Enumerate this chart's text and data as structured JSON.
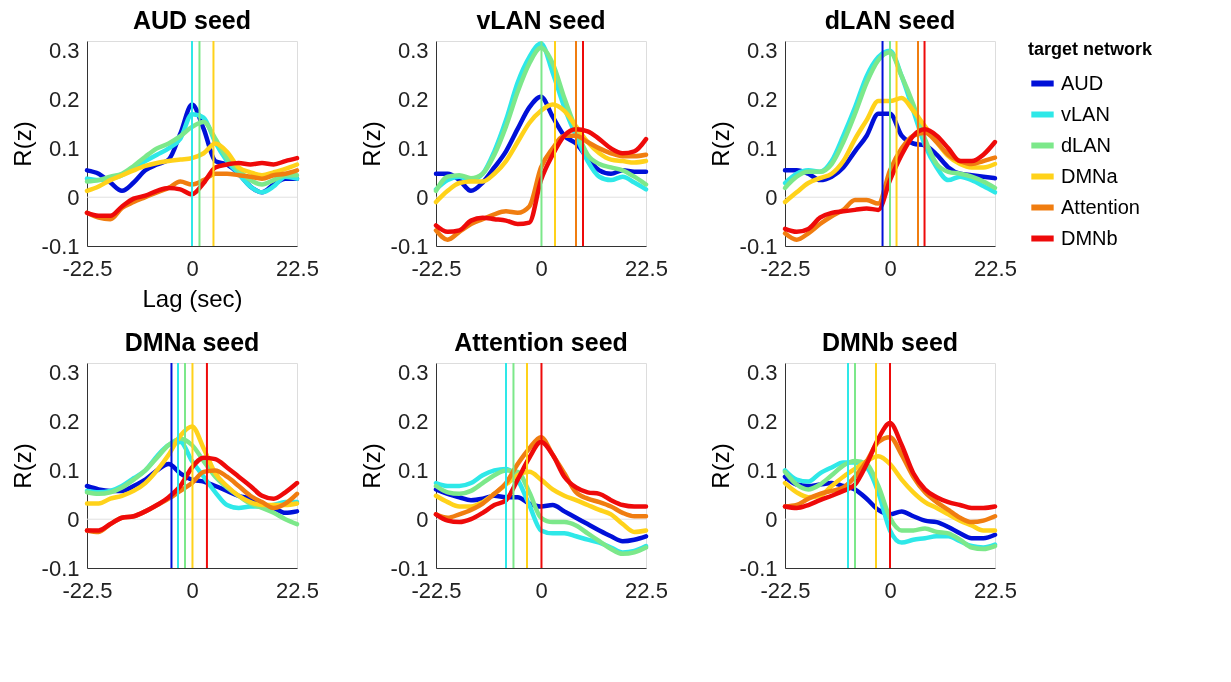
{
  "chart_data": [
    {
      "type": "line",
      "title": "AUD seed",
      "xlabel": "Lag (sec)",
      "ylabel": "R(z)",
      "xlim": [
        -22.5,
        22.5
      ],
      "ylim": [
        -0.1,
        0.32
      ],
      "xticks": [
        -22.5,
        0,
        22.5
      ],
      "yticks": [
        -0.1,
        0,
        0.1,
        0.2,
        0.3
      ],
      "grid": false,
      "x": [
        -22.5,
        -20,
        -17.5,
        -15,
        -12.5,
        -10,
        -7.5,
        -5,
        -2.5,
        0,
        2.5,
        5,
        7.5,
        10,
        12.5,
        15,
        17.5,
        20,
        22.5
      ],
      "series": [
        {
          "color": "#0010d8",
          "values": [
            0.055,
            0.048,
            0.03,
            0.013,
            0.03,
            0.055,
            0.067,
            0.077,
            0.13,
            0.19,
            0.14,
            0.074,
            0.067,
            0.048,
            0.022,
            0.01,
            0.026,
            0.038,
            0.038
          ]
        },
        {
          "color": "#2ee8e8",
          "values": [
            0.038,
            0.035,
            0.038,
            0.045,
            0.061,
            0.074,
            0.087,
            0.1,
            0.12,
            0.17,
            0.163,
            0.112,
            0.074,
            0.048,
            0.022,
            0.01,
            0.022,
            0.042,
            0.038
          ]
        },
        {
          "color": "#7ce88a",
          "values": [
            0.032,
            0.035,
            0.042,
            0.048,
            0.064,
            0.083,
            0.1,
            0.11,
            0.125,
            0.144,
            0.154,
            0.12,
            0.08,
            0.055,
            0.035,
            0.026,
            0.035,
            0.045,
            0.045
          ]
        },
        {
          "color": "#ffd21a",
          "values": [
            0.013,
            0.022,
            0.035,
            0.045,
            0.055,
            0.064,
            0.07,
            0.074,
            0.077,
            0.08,
            0.09,
            0.11,
            0.093,
            0.061,
            0.051,
            0.045,
            0.051,
            0.058,
            0.067
          ]
        },
        {
          "color": "#f07d10",
          "values": [
            -0.032,
            -0.042,
            -0.045,
            -0.022,
            -0.01,
            0,
            0.01,
            0.019,
            0.032,
            0.026,
            0.035,
            0.048,
            0.048,
            0.045,
            0.042,
            0.038,
            0.045,
            0.048,
            0.055
          ]
        },
        {
          "color": "#ee0a0a",
          "values": [
            -0.032,
            -0.038,
            -0.038,
            -0.019,
            -0.003,
            0.003,
            0.013,
            0.019,
            0.016,
            0.006,
            0.029,
            0.061,
            0.067,
            0.07,
            0.067,
            0.07,
            0.067,
            0.074,
            0.08
          ]
        }
      ],
      "ref_lines": [
        {
          "axis": "y",
          "value": 0,
          "color": "#e0e0e0"
        },
        {
          "axis": "x",
          "value": 0,
          "color": "#2ee8e8"
        },
        {
          "axis": "x",
          "value": 1.6,
          "color": "#7ce88a"
        },
        {
          "axis": "x",
          "value": 4.6,
          "color": "#ffd21a"
        }
      ]
    },
    {
      "type": "line",
      "title": "vLAN seed",
      "ylabel": "R(z)",
      "xlim": [
        -22.5,
        22.5
      ],
      "ylim": [
        -0.1,
        0.32
      ],
      "xticks": [
        -22.5,
        0,
        22.5
      ],
      "yticks": [
        -0.1,
        0,
        0.1,
        0.2,
        0.3
      ],
      "grid": false,
      "x": [
        -22.5,
        -20,
        -17.5,
        -15,
        -12.5,
        -10,
        -7.5,
        -5,
        -2.5,
        0,
        2.5,
        5,
        7.5,
        10,
        12.5,
        15,
        17.5,
        20,
        22.5
      ],
      "series": [
        {
          "color": "#0010d8",
          "values": [
            0.048,
            0.048,
            0.035,
            0.013,
            0.03,
            0.061,
            0.094,
            0.14,
            0.184,
            0.206,
            0.165,
            0.126,
            0.11,
            0.08,
            0.055,
            0.048,
            0.055,
            0.052,
            0.052
          ]
        },
        {
          "color": "#2ee8e8",
          "values": [
            0.016,
            0.035,
            0.042,
            0.035,
            0.048,
            0.094,
            0.158,
            0.235,
            0.287,
            0.315,
            0.255,
            0.184,
            0.126,
            0.074,
            0.042,
            0.035,
            0.042,
            0.03,
            0.016
          ]
        },
        {
          "color": "#7ce88a",
          "values": [
            0.013,
            0.042,
            0.045,
            0.039,
            0.048,
            0.087,
            0.145,
            0.216,
            0.274,
            0.306,
            0.274,
            0.203,
            0.139,
            0.087,
            0.068,
            0.061,
            0.055,
            0.042,
            0.026
          ]
        },
        {
          "color": "#ffd21a",
          "values": [
            -0.01,
            0.013,
            0.029,
            0.032,
            0.032,
            0.048,
            0.074,
            0.113,
            0.152,
            0.177,
            0.19,
            0.177,
            0.145,
            0.113,
            0.09,
            0.077,
            0.074,
            0.071,
            0.074
          ]
        },
        {
          "color": "#f07d10",
          "values": [
            -0.068,
            -0.087,
            -0.071,
            -0.055,
            -0.045,
            -0.035,
            -0.029,
            -0.032,
            -0.019,
            0.061,
            0.1,
            0.126,
            0.126,
            0.113,
            0.1,
            0.09,
            0.084,
            0.084,
            0.087
          ]
        },
        {
          "color": "#ee0a0a",
          "values": [
            -0.058,
            -0.071,
            -0.068,
            -0.048,
            -0.042,
            -0.045,
            -0.048,
            -0.055,
            -0.052,
            0.035,
            0.087,
            0.126,
            0.139,
            0.135,
            0.119,
            0.1,
            0.09,
            0.094,
            0.119
          ]
        }
      ],
      "ref_lines": [
        {
          "axis": "y",
          "value": 0,
          "color": "#e0e0e0"
        },
        {
          "axis": "x",
          "value": 0.1,
          "color": "#7ce88a"
        },
        {
          "axis": "x",
          "value": 3.0,
          "color": "#ffd21a"
        },
        {
          "axis": "x",
          "value": 7.5,
          "color": "#f07d10"
        },
        {
          "axis": "x",
          "value": 9.0,
          "color": "#ee0a0a"
        }
      ]
    },
    {
      "type": "line",
      "title": "dLAN seed",
      "ylabel": "R(z)",
      "xlim": [
        -22.5,
        22.5
      ],
      "ylim": [
        -0.1,
        0.32
      ],
      "xticks": [
        -22.5,
        0,
        22.5
      ],
      "yticks": [
        -0.1,
        0,
        0.1,
        0.2,
        0.3
      ],
      "grid": false,
      "legend": "right",
      "legend_title": "target network",
      "x": [
        -22.5,
        -20,
        -17.5,
        -15,
        -12.5,
        -10,
        -7.5,
        -5,
        -2.5,
        0,
        2.5,
        5,
        7.5,
        10,
        12.5,
        15,
        17.5,
        20,
        22.5
      ],
      "series": [
        {
          "name": "AUD",
          "color": "#0010d8",
          "values": [
            0.055,
            0.055,
            0.048,
            0.035,
            0.042,
            0.061,
            0.094,
            0.126,
            0.171,
            0.171,
            0.126,
            0.11,
            0.106,
            0.087,
            0.061,
            0.048,
            0.045,
            0.042,
            0.039
          ]
        },
        {
          "name": "vLAN",
          "color": "#2ee8e8",
          "values": [
            0.029,
            0.048,
            0.055,
            0.052,
            0.074,
            0.126,
            0.184,
            0.248,
            0.287,
            0.3,
            0.248,
            0.177,
            0.106,
            0.061,
            0.035,
            0.042,
            0.035,
            0.023,
            0.01
          ]
        },
        {
          "name": "dLAN",
          "color": "#7ce88a",
          "values": [
            0.019,
            0.042,
            0.052,
            0.052,
            0.068,
            0.113,
            0.171,
            0.235,
            0.281,
            0.297,
            0.248,
            0.19,
            0.119,
            0.068,
            0.052,
            0.048,
            0.042,
            0.032,
            0.019
          ]
        },
        {
          "name": "DMNa",
          "color": "#ffd21a",
          "values": [
            -0.01,
            0.01,
            0.029,
            0.039,
            0.048,
            0.074,
            0.119,
            0.158,
            0.197,
            0.197,
            0.203,
            0.177,
            0.145,
            0.113,
            0.084,
            0.068,
            0.061,
            0.061,
            0.068
          ]
        },
        {
          "name": "Attention",
          "color": "#f07d10",
          "values": [
            -0.074,
            -0.087,
            -0.074,
            -0.055,
            -0.039,
            -0.026,
            -0.006,
            -0.006,
            -0.013,
            0.055,
            0.1,
            0.126,
            0.132,
            0.113,
            0.087,
            0.074,
            0.068,
            0.074,
            0.081
          ]
        },
        {
          "name": "DMNb",
          "color": "#ee0a0a",
          "values": [
            -0.065,
            -0.071,
            -0.065,
            -0.042,
            -0.032,
            -0.029,
            -0.026,
            -0.023,
            -0.026,
            0.035,
            0.087,
            0.126,
            0.139,
            0.126,
            0.1,
            0.074,
            0.074,
            0.087,
            0.113
          ]
        }
      ],
      "ref_lines": [
        {
          "axis": "y",
          "value": 0,
          "color": "#e0e0e0"
        },
        {
          "axis": "x",
          "value": -1.6,
          "color": "#0010d8"
        },
        {
          "axis": "x",
          "value": 0,
          "color": "#7ce88a"
        },
        {
          "axis": "x",
          "value": 1.4,
          "color": "#ffd21a"
        },
        {
          "axis": "x",
          "value": 6.0,
          "color": "#f07d10"
        },
        {
          "axis": "x",
          "value": 7.4,
          "color": "#ee0a0a"
        }
      ]
    },
    {
      "type": "line",
      "title": "DMNa seed",
      "ylabel": "R(z)",
      "xlim": [
        -22.5,
        22.5
      ],
      "ylim": [
        -0.1,
        0.32
      ],
      "xticks": [
        -22.5,
        0,
        22.5
      ],
      "yticks": [
        -0.1,
        0,
        0.1,
        0.2,
        0.3
      ],
      "grid": false,
      "x": [
        -22.5,
        -20,
        -17.5,
        -15,
        -12.5,
        -10,
        -7.5,
        -5,
        -2.5,
        0,
        2.5,
        5,
        7.5,
        10,
        12.5,
        15,
        17.5,
        20,
        22.5
      ],
      "series": [
        {
          "color": "#0010d8",
          "values": [
            0.068,
            0.061,
            0.058,
            0.058,
            0.068,
            0.081,
            0.1,
            0.113,
            0.094,
            0.081,
            0.077,
            0.068,
            0.058,
            0.048,
            0.042,
            0.032,
            0.023,
            0.013,
            0.016
          ]
        },
        {
          "color": "#2ee8e8",
          "values": [
            0.058,
            0.055,
            0.058,
            0.068,
            0.084,
            0.1,
            0.129,
            0.152,
            0.158,
            0.119,
            0.087,
            0.055,
            0.029,
            0.023,
            0.026,
            0.026,
            0.029,
            0.035,
            0.035
          ]
        },
        {
          "color": "#7ce88a",
          "values": [
            0.055,
            0.052,
            0.055,
            0.065,
            0.081,
            0.1,
            0.126,
            0.152,
            0.165,
            0.152,
            0.119,
            0.087,
            0.065,
            0.048,
            0.032,
            0.023,
            0.013,
            0,
            -0.01
          ]
        },
        {
          "color": "#ffd21a",
          "values": [
            0.032,
            0.032,
            0.042,
            0.048,
            0.058,
            0.074,
            0.1,
            0.132,
            0.171,
            0.19,
            0.145,
            0.094,
            0.068,
            0.048,
            0.035,
            0.029,
            0.029,
            0.029,
            0.032
          ]
        },
        {
          "color": "#f07d10",
          "values": [
            -0.023,
            -0.026,
            -0.01,
            0.003,
            0.006,
            0.016,
            0.029,
            0.042,
            0.058,
            0.074,
            0.097,
            0.1,
            0.087,
            0.068,
            0.048,
            0.035,
            0.023,
            0.032,
            0.052
          ]
        },
        {
          "color": "#ee0a0a",
          "values": [
            -0.023,
            -0.023,
            -0.01,
            0.003,
            0.006,
            0.016,
            0.029,
            0.045,
            0.068,
            0.106,
            0.126,
            0.123,
            0.106,
            0.087,
            0.068,
            0.048,
            0.042,
            0.055,
            0.074
          ]
        }
      ],
      "ref_lines": [
        {
          "axis": "y",
          "value": 0,
          "color": "#e0e0e0"
        },
        {
          "axis": "x",
          "value": -4.4,
          "color": "#0010d8"
        },
        {
          "axis": "x",
          "value": -3.0,
          "color": "#2ee8e8"
        },
        {
          "axis": "x",
          "value": -1.5,
          "color": "#7ce88a"
        },
        {
          "axis": "x",
          "value": 0.1,
          "color": "#ffd21a"
        },
        {
          "axis": "x",
          "value": 3.2,
          "color": "#ee0a0a"
        }
      ]
    },
    {
      "type": "line",
      "title": "Attention seed",
      "ylabel": "R(z)",
      "xlim": [
        -22.5,
        22.5
      ],
      "ylim": [
        -0.1,
        0.32
      ],
      "xticks": [
        -22.5,
        0,
        22.5
      ],
      "yticks": [
        -0.1,
        0,
        0.1,
        0.2,
        0.3
      ],
      "grid": false,
      "x": [
        -22.5,
        -20,
        -17.5,
        -15,
        -12.5,
        -10,
        -7.5,
        -5,
        -2.5,
        0,
        2.5,
        5,
        7.5,
        10,
        12.5,
        15,
        17.5,
        20,
        22.5
      ],
      "series": [
        {
          "color": "#0010d8",
          "values": [
            0.061,
            0.052,
            0.045,
            0.039,
            0.042,
            0.048,
            0.045,
            0.045,
            0.032,
            0.026,
            0.029,
            0.016,
            0.003,
            -0.01,
            -0.023,
            -0.035,
            -0.045,
            -0.042,
            -0.035
          ]
        },
        {
          "color": "#2ee8e8",
          "values": [
            0.074,
            0.068,
            0.068,
            0.074,
            0.09,
            0.1,
            0.103,
            0.081,
            0.029,
            -0.023,
            -0.029,
            -0.029,
            -0.035,
            -0.042,
            -0.048,
            -0.058,
            -0.068,
            -0.065,
            -0.055
          ]
        },
        {
          "color": "#7ce88a",
          "values": [
            0.068,
            0.055,
            0.052,
            0.058,
            0.074,
            0.09,
            0.1,
            0.097,
            0.055,
            0.003,
            -0.006,
            -0.006,
            -0.013,
            -0.029,
            -0.045,
            -0.061,
            -0.071,
            -0.068,
            -0.058
          ]
        },
        {
          "color": "#ffd21a",
          "values": [
            0.048,
            0.035,
            0.026,
            0.026,
            0.035,
            0.052,
            0.071,
            0.09,
            0.097,
            0.081,
            0.061,
            0.048,
            0.039,
            0.029,
            0.019,
            0.01,
            -0.01,
            -0.026,
            -0.023
          ]
        },
        {
          "color": "#f07d10",
          "values": [
            0.01,
            0.003,
            0.01,
            0.019,
            0.032,
            0.052,
            0.074,
            0.113,
            0.145,
            0.168,
            0.132,
            0.094,
            0.055,
            0.042,
            0.035,
            0.026,
            0.013,
            0.006,
            0.006
          ]
        },
        {
          "color": "#ee0a0a",
          "values": [
            0.01,
            -0.003,
            -0.006,
            0,
            0.013,
            0.029,
            0.039,
            0.081,
            0.126,
            0.158,
            0.132,
            0.087,
            0.065,
            0.055,
            0.052,
            0.039,
            0.029,
            0.026,
            0.026
          ]
        }
      ],
      "ref_lines": [
        {
          "axis": "y",
          "value": 0,
          "color": "#e0e0e0"
        },
        {
          "axis": "x",
          "value": -7.5,
          "color": "#2ee8e8"
        },
        {
          "axis": "x",
          "value": -5.9,
          "color": "#7ce88a"
        },
        {
          "axis": "x",
          "value": -3.0,
          "color": "#ffd21a"
        },
        {
          "axis": "x",
          "value": 0.1,
          "color": "#ee0a0a"
        }
      ]
    },
    {
      "type": "line",
      "title": "DMNb seed",
      "ylabel": "R(z)",
      "xlim": [
        -22.5,
        22.5
      ],
      "ylim": [
        -0.1,
        0.32
      ],
      "xticks": [
        -22.5,
        0,
        22.5
      ],
      "yticks": [
        -0.1,
        0,
        0.1,
        0.2,
        0.3
      ],
      "grid": false,
      "x": [
        -22.5,
        -20,
        -17.5,
        -15,
        -12.5,
        -10,
        -7.5,
        -5,
        -2.5,
        0,
        2.5,
        5,
        7.5,
        10,
        12.5,
        15,
        17.5,
        20,
        22.5
      ],
      "series": [
        {
          "color": "#0010d8",
          "values": [
            0.087,
            0.071,
            0.068,
            0.071,
            0.074,
            0.068,
            0.061,
            0.042,
            0.019,
            0.01,
            0.016,
            0.006,
            -0.003,
            -0.006,
            -0.016,
            -0.029,
            -0.039,
            -0.039,
            -0.032
          ]
        },
        {
          "color": "#2ee8e8",
          "values": [
            0.1,
            0.081,
            0.077,
            0.094,
            0.106,
            0.116,
            0.116,
            0.106,
            0.055,
            -0.023,
            -0.048,
            -0.042,
            -0.039,
            -0.035,
            -0.035,
            -0.045,
            -0.055,
            -0.058,
            -0.052
          ]
        },
        {
          "color": "#7ce88a",
          "values": [
            0.097,
            0.071,
            0.061,
            0.071,
            0.09,
            0.11,
            0.119,
            0.113,
            0.068,
            0.003,
            -0.023,
            -0.023,
            -0.019,
            -0.026,
            -0.029,
            -0.042,
            -0.058,
            -0.061,
            -0.055
          ]
        },
        {
          "color": "#ffd21a",
          "values": [
            0.074,
            0.055,
            0.045,
            0.048,
            0.068,
            0.087,
            0.103,
            0.119,
            0.129,
            0.113,
            0.081,
            0.055,
            0.035,
            0.023,
            0.01,
            -0.003,
            -0.013,
            -0.023,
            -0.023
          ]
        },
        {
          "color": "#f07d10",
          "values": [
            0.026,
            0.029,
            0.042,
            0.052,
            0.058,
            0.065,
            0.087,
            0.119,
            0.158,
            0.168,
            0.132,
            0.087,
            0.055,
            0.035,
            0.019,
            0.003,
            -0.006,
            -0.003,
            0.006
          ]
        },
        {
          "color": "#ee0a0a",
          "values": [
            0.026,
            0.023,
            0.029,
            0.039,
            0.048,
            0.058,
            0.071,
            0.113,
            0.165,
            0.197,
            0.152,
            0.094,
            0.061,
            0.045,
            0.035,
            0.029,
            0.023,
            0.023,
            0.026
          ]
        }
      ],
      "ref_lines": [
        {
          "axis": "y",
          "value": 0,
          "color": "#e0e0e0"
        },
        {
          "axis": "x",
          "value": -9.0,
          "color": "#2ee8e8"
        },
        {
          "axis": "x",
          "value": -7.5,
          "color": "#7ce88a"
        },
        {
          "axis": "x",
          "value": -3.0,
          "color": "#ffd21a"
        },
        {
          "axis": "x",
          "value": 0.0,
          "color": "#ee0a0a"
        }
      ]
    }
  ]
}
